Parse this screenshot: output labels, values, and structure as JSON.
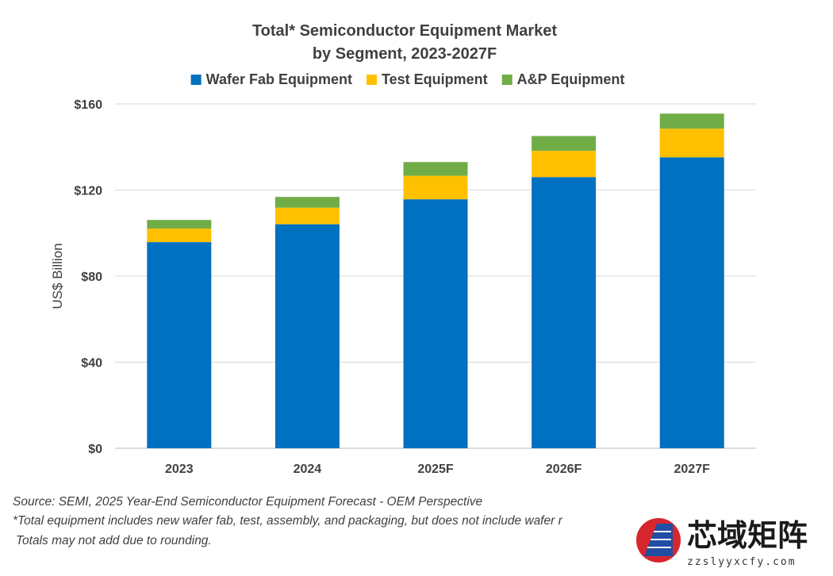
{
  "chart_data": {
    "type": "bar",
    "stacked": true,
    "title": "Total* Semiconductor Equipment Market",
    "subtitle": "by Segment, 2023-2027F",
    "xlabel": "",
    "ylabel": "US$ Billion",
    "ylim": [
      0,
      160
    ],
    "yticks": [
      "$0",
      "$40",
      "$80",
      "$120",
      "$160"
    ],
    "ytick_values": [
      0,
      40,
      80,
      120,
      160
    ],
    "grid": true,
    "legend_position": "top",
    "categories": [
      "2023",
      "2024",
      "2025F",
      "2026F",
      "2027F"
    ],
    "series": [
      {
        "name": "Wafer Fab Equipment",
        "color": "#0070C0",
        "values": [
          95.8,
          104.1,
          115.7,
          126.0,
          135.2
        ]
      },
      {
        "name": "Test Equipment",
        "color": "#FFC000",
        "values": [
          6.3,
          7.7,
          10.9,
          12.2,
          13.3
        ]
      },
      {
        "name": "A&P Equipment",
        "color": "#70AD47",
        "values": [
          4.0,
          5.0,
          6.4,
          6.9,
          7.0
        ]
      }
    ]
  },
  "footnotes": {
    "source": "Source: SEMI, 2025 Year-End Semiconductor Equipment Forecast - OEM Perspective",
    "note1": "*Total equipment includes new wafer fab, test, assembly, and packaging, but does not include wafer r",
    "note2": "Totals may not add due to rounding."
  },
  "watermark": {
    "name": "芯域矩阵",
    "url": "zzslyyxcfy.com"
  }
}
